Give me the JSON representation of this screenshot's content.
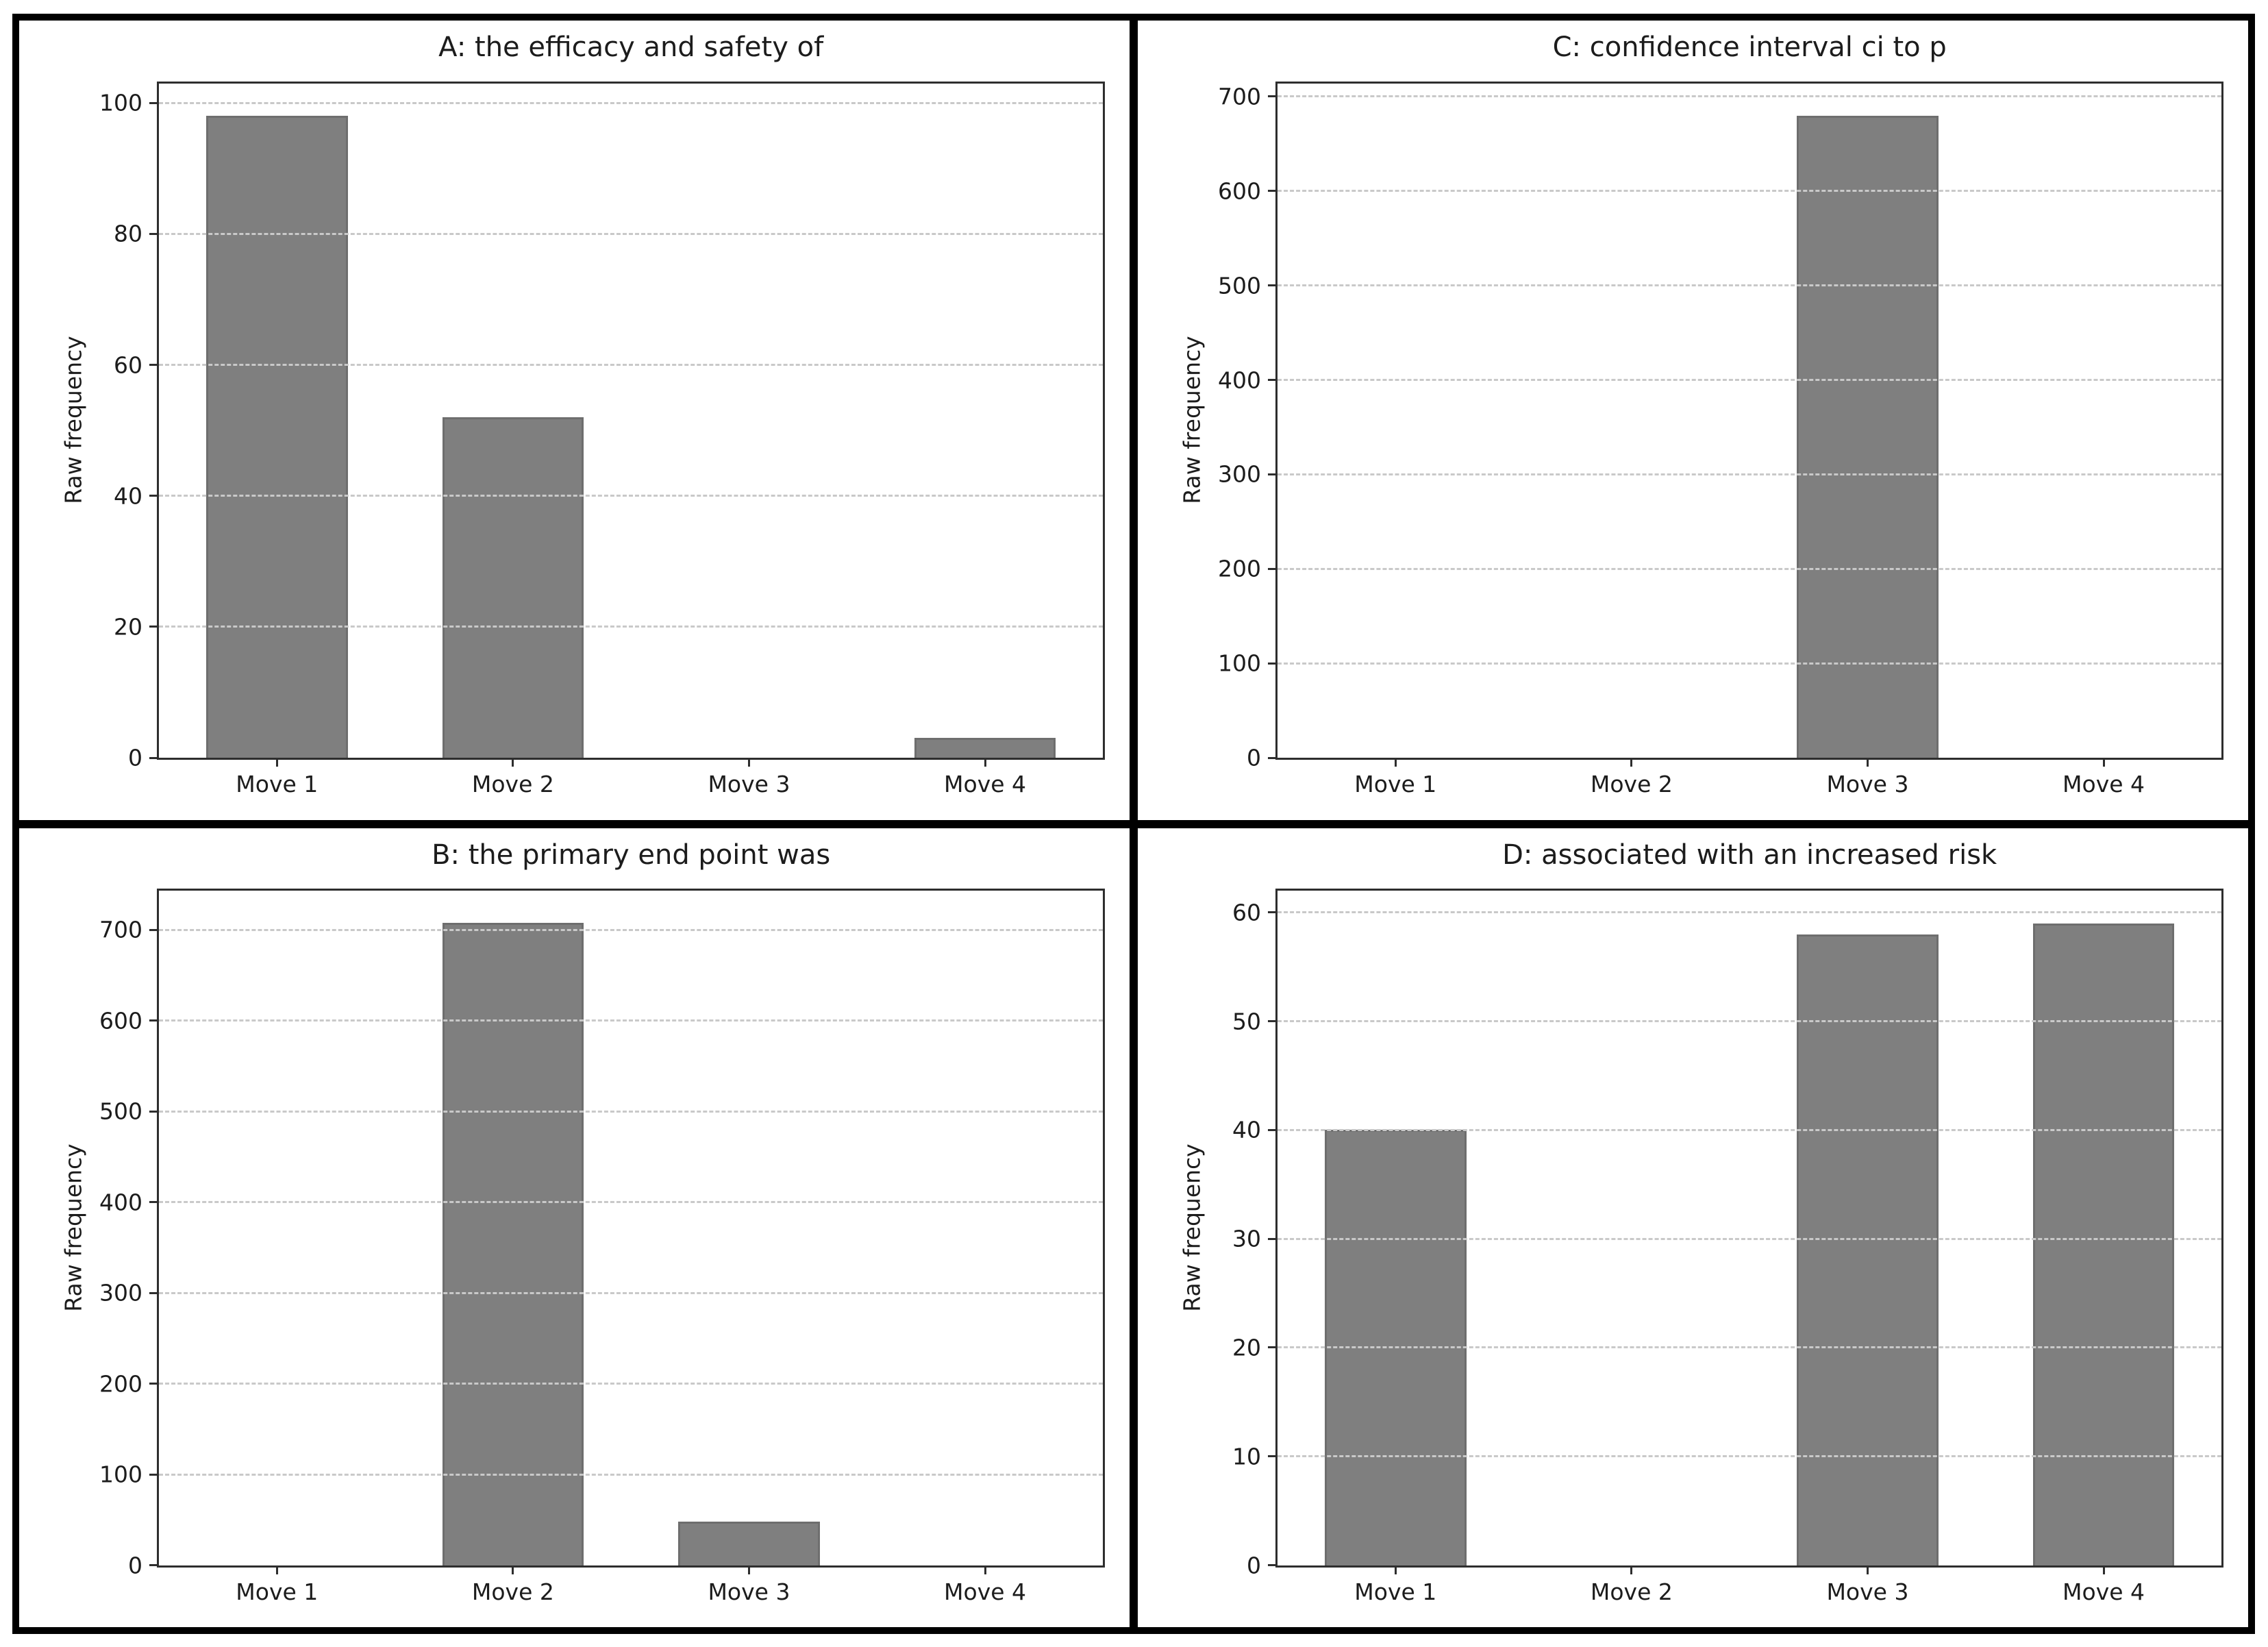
{
  "figure": {
    "outer_border_color": "#000000",
    "divider_color": "#000000",
    "panel_background": "#ffffff",
    "bar_fill": "#7f7f7f",
    "bar_edge": "#6e6e6e",
    "grid_color": "#c9c9c9",
    "spine_color": "#2e2e2e",
    "text_color": "#1c1c1c"
  },
  "chart_data": [
    {
      "type": "bar",
      "position": "top-left",
      "title": "A: the efficacy and safety of",
      "xlabel": "",
      "ylabel": "Raw frequency",
      "categories": [
        "Move 1",
        "Move 2",
        "Move 3",
        "Move 4"
      ],
      "values": [
        98,
        52,
        0,
        3
      ],
      "yticks": [
        0,
        20,
        40,
        60,
        80,
        100
      ],
      "ylim": [
        0,
        103
      ],
      "grid": "horizontal-dashed",
      "legend": "none"
    },
    {
      "type": "bar",
      "position": "top-right",
      "title": "C: confidence interval ci to p",
      "xlabel": "",
      "ylabel": "Raw frequency",
      "categories": [
        "Move 1",
        "Move 2",
        "Move 3",
        "Move 4"
      ],
      "values": [
        0,
        0,
        680,
        0
      ],
      "yticks": [
        0,
        100,
        200,
        300,
        400,
        500,
        600,
        700
      ],
      "ylim": [
        0,
        714
      ],
      "grid": "horizontal-dashed",
      "legend": "none"
    },
    {
      "type": "bar",
      "position": "bottom-left",
      "title": "B: the primary end point was",
      "xlabel": "",
      "ylabel": "Raw frequency",
      "categories": [
        "Move 1",
        "Move 2",
        "Move 3",
        "Move 4"
      ],
      "values": [
        0,
        708,
        48,
        0
      ],
      "yticks": [
        0,
        100,
        200,
        300,
        400,
        500,
        600,
        700
      ],
      "ylim": [
        0,
        743
      ],
      "grid": "horizontal-dashed",
      "legend": "none"
    },
    {
      "type": "bar",
      "position": "bottom-right",
      "title": "D: associated with an increased risk",
      "xlabel": "",
      "ylabel": "Raw frequency",
      "categories": [
        "Move 1",
        "Move 2",
        "Move 3",
        "Move 4"
      ],
      "values": [
        40,
        0,
        58,
        59
      ],
      "yticks": [
        0,
        10,
        20,
        30,
        40,
        50,
        60
      ],
      "ylim": [
        0,
        62
      ],
      "grid": "horizontal-dashed",
      "legend": "none"
    }
  ]
}
